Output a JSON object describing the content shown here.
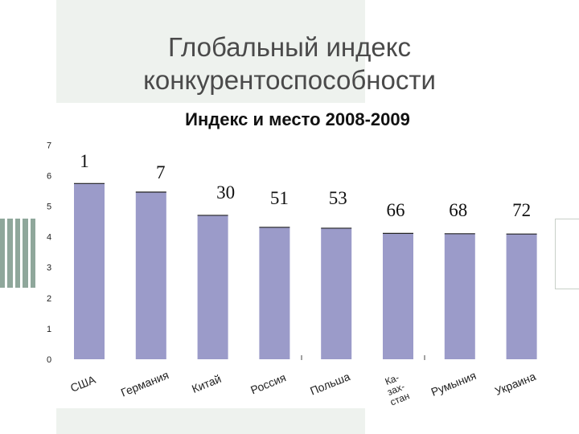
{
  "slide": {
    "title": "Глобальный индекс конкурентоспособности"
  },
  "chart_data": {
    "type": "bar",
    "title": "Индекс и место 2008-2009",
    "categories": [
      "США",
      "Германия",
      "Китай",
      "Россия",
      "Польша",
      "Ка-\nзах-\nстан",
      "Румыния",
      "Украина"
    ],
    "values": [
      5.74,
      5.46,
      4.7,
      4.31,
      4.28,
      4.11,
      4.1,
      4.09
    ],
    "ranks": [
      "1",
      "7",
      "30",
      "51",
      "53",
      "66",
      "68",
      "72"
    ],
    "ylim": [
      0,
      7
    ],
    "yticks": [
      "0",
      "1",
      "2",
      "3",
      "4",
      "5",
      "6",
      "7"
    ],
    "grid": false,
    "colors": {
      "bar": "#9b9bc9",
      "bar_top": "#222222",
      "axis_text": "#222222",
      "rank_text": "#111111"
    }
  }
}
